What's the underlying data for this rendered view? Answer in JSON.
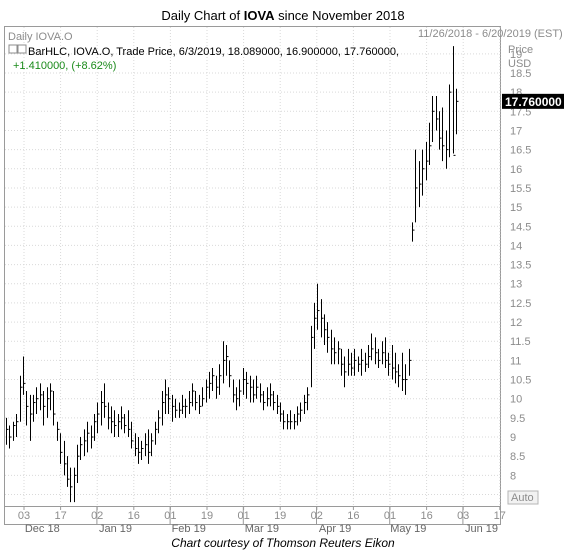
{
  "title": {
    "prefix": "Daily Chart of ",
    "ticker": "IOVA",
    "suffix": " since November 2018"
  },
  "credit": "Chart courtesy of Thomson Reuters Eikon",
  "chart_data": {
    "type": "ohlc",
    "symbol_label": "Daily IOVA.O",
    "date_range": "11/26/2018 - 6/20/2019 (EST)",
    "legend_line1": "BarHLC, IOVA.O, Trade Price, 6/3/2019, 18.089000, 16.900000, 17.760000,",
    "legend_line2": "+1.410000, (+8.62%)",
    "y_axis_title": [
      "Price",
      "USD"
    ],
    "y_ticks": [
      "19",
      "18.5",
      "18",
      "17.5",
      "17",
      "16.5",
      "16",
      "15.5",
      "15",
      "14.5",
      "14",
      "13.5",
      "13",
      "12.5",
      "12",
      "11.5",
      "11",
      "10.5",
      "10",
      "9.5",
      "9",
      "8.5",
      "8",
      "7.5"
    ],
    "ylim": [
      7.2,
      19.7
    ],
    "last_price_label": "17.760000",
    "last_price": 17.76,
    "x_ticks": [
      "03",
      "17",
      "02",
      "16",
      "01",
      "19",
      "01",
      "19",
      "02",
      "16",
      "01",
      "16",
      "03",
      "17"
    ],
    "x_months": [
      "Dec 18",
      "Jan 19",
      "Feb 19",
      "Mar 19",
      "Apr 19",
      "May 19",
      "Jun 19"
    ],
    "auto_label": "Auto",
    "colors": {
      "bars": "#000000",
      "last_price_bg": "#000000",
      "change_text": "#1a8a1a"
    },
    "bars": [
      {
        "h": 9.5,
        "l": 8.8,
        "c": 9.2
      },
      {
        "h": 9.3,
        "l": 8.7,
        "c": 9.0
      },
      {
        "h": 9.4,
        "l": 8.9,
        "c": 9.3
      },
      {
        "h": 9.6,
        "l": 9.0,
        "c": 9.4
      },
      {
        "h": 10.6,
        "l": 9.4,
        "c": 10.3
      },
      {
        "h": 11.1,
        "l": 10.1,
        "c": 10.4
      },
      {
        "h": 10.2,
        "l": 9.3,
        "c": 9.8
      },
      {
        "h": 10.1,
        "l": 8.9,
        "c": 9.6
      },
      {
        "h": 10.1,
        "l": 9.4,
        "c": 9.9
      },
      {
        "h": 10.3,
        "l": 9.6,
        "c": 10.0
      },
      {
        "h": 10.4,
        "l": 9.7,
        "c": 10.1
      },
      {
        "h": 10.2,
        "l": 9.3,
        "c": 9.8
      },
      {
        "h": 10.3,
        "l": 9.5,
        "c": 10.0
      },
      {
        "h": 10.4,
        "l": 9.7,
        "c": 10.2
      },
      {
        "h": 10.2,
        "l": 9.3,
        "c": 9.6
      },
      {
        "h": 9.4,
        "l": 8.9,
        "c": 9.2
      },
      {
        "h": 9.1,
        "l": 8.3,
        "c": 8.6
      },
      {
        "h": 8.9,
        "l": 8.0,
        "c": 8.3
      },
      {
        "h": 8.5,
        "l": 7.7,
        "c": 7.9
      },
      {
        "h": 8.2,
        "l": 7.3,
        "c": 7.7
      },
      {
        "h": 8.2,
        "l": 7.3,
        "c": 8.0
      },
      {
        "h": 8.8,
        "l": 7.8,
        "c": 8.5
      },
      {
        "h": 9.0,
        "l": 8.4,
        "c": 8.8
      },
      {
        "h": 9.2,
        "l": 8.5,
        "c": 8.9
      },
      {
        "h": 9.4,
        "l": 8.6,
        "c": 9.1
      },
      {
        "h": 9.3,
        "l": 8.7,
        "c": 9.0
      },
      {
        "h": 9.6,
        "l": 8.9,
        "c": 9.4
      },
      {
        "h": 9.9,
        "l": 9.1,
        "c": 9.6
      },
      {
        "h": 10.2,
        "l": 9.3,
        "c": 9.9
      },
      {
        "h": 10.4,
        "l": 9.5,
        "c": 9.8
      },
      {
        "h": 9.9,
        "l": 9.2,
        "c": 9.5
      },
      {
        "h": 9.8,
        "l": 9.1,
        "c": 9.4
      },
      {
        "h": 9.7,
        "l": 9.0,
        "c": 9.3
      },
      {
        "h": 9.6,
        "l": 9.0,
        "c": 9.4
      },
      {
        "h": 9.8,
        "l": 9.2,
        "c": 9.5
      },
      {
        "h": 9.6,
        "l": 9.1,
        "c": 9.3
      },
      {
        "h": 9.7,
        "l": 9.0,
        "c": 9.2
      },
      {
        "h": 9.4,
        "l": 8.7,
        "c": 8.9
      },
      {
        "h": 9.1,
        "l": 8.5,
        "c": 8.7
      },
      {
        "h": 9.0,
        "l": 8.3,
        "c": 8.6
      },
      {
        "h": 8.9,
        "l": 8.4,
        "c": 8.7
      },
      {
        "h": 9.1,
        "l": 8.5,
        "c": 8.8
      },
      {
        "h": 9.2,
        "l": 8.3,
        "c": 8.6
      },
      {
        "h": 9.1,
        "l": 8.5,
        "c": 8.9
      },
      {
        "h": 9.4,
        "l": 8.8,
        "c": 9.2
      },
      {
        "h": 9.7,
        "l": 9.1,
        "c": 9.5
      },
      {
        "h": 10.2,
        "l": 9.3,
        "c": 9.9
      },
      {
        "h": 10.5,
        "l": 9.6,
        "c": 10.1
      },
      {
        "h": 10.3,
        "l": 9.6,
        "c": 10.0
      },
      {
        "h": 10.1,
        "l": 9.4,
        "c": 9.8
      },
      {
        "h": 10.0,
        "l": 9.5,
        "c": 9.7
      },
      {
        "h": 9.9,
        "l": 9.5,
        "c": 9.7
      },
      {
        "h": 10.1,
        "l": 9.6,
        "c": 9.8
      },
      {
        "h": 10.0,
        "l": 9.5,
        "c": 9.8
      },
      {
        "h": 10.2,
        "l": 9.6,
        "c": 9.9
      },
      {
        "h": 10.4,
        "l": 9.8,
        "c": 10.2
      },
      {
        "h": 10.2,
        "l": 9.7,
        "c": 9.9
      },
      {
        "h": 10.1,
        "l": 9.6,
        "c": 9.8
      },
      {
        "h": 10.3,
        "l": 9.8,
        "c": 10.0
      },
      {
        "h": 10.5,
        "l": 9.9,
        "c": 10.3
      },
      {
        "h": 10.7,
        "l": 10.0,
        "c": 10.4
      },
      {
        "h": 10.8,
        "l": 10.2,
        "c": 10.6
      },
      {
        "h": 10.6,
        "l": 10.0,
        "c": 10.3
      },
      {
        "h": 10.9,
        "l": 10.1,
        "c": 10.6
      },
      {
        "h": 11.5,
        "l": 10.4,
        "c": 11.0
      },
      {
        "h": 11.4,
        "l": 10.6,
        "c": 11.1
      },
      {
        "h": 11.0,
        "l": 10.3,
        "c": 10.6
      },
      {
        "h": 10.5,
        "l": 9.9,
        "c": 10.1
      },
      {
        "h": 10.3,
        "l": 9.7,
        "c": 10.0
      },
      {
        "h": 10.5,
        "l": 9.8,
        "c": 10.2
      },
      {
        "h": 10.8,
        "l": 10.1,
        "c": 10.5
      },
      {
        "h": 10.7,
        "l": 10.0,
        "c": 10.4
      },
      {
        "h": 10.6,
        "l": 9.9,
        "c": 10.3
      },
      {
        "h": 10.5,
        "l": 9.9,
        "c": 10.1
      },
      {
        "h": 10.6,
        "l": 10.0,
        "c": 10.3
      },
      {
        "h": 10.4,
        "l": 9.9,
        "c": 10.1
      },
      {
        "h": 10.2,
        "l": 9.7,
        "c": 9.9
      },
      {
        "h": 10.3,
        "l": 9.8,
        "c": 10.0
      },
      {
        "h": 10.4,
        "l": 9.8,
        "c": 10.1
      },
      {
        "h": 10.2,
        "l": 9.7,
        "c": 9.9
      },
      {
        "h": 10.1,
        "l": 9.6,
        "c": 9.8
      },
      {
        "h": 9.9,
        "l": 9.4,
        "c": 9.6
      },
      {
        "h": 9.7,
        "l": 9.2,
        "c": 9.4
      },
      {
        "h": 9.6,
        "l": 9.2,
        "c": 9.4
      },
      {
        "h": 9.7,
        "l": 9.2,
        "c": 9.4
      },
      {
        "h": 9.6,
        "l": 9.2,
        "c": 9.4
      },
      {
        "h": 9.8,
        "l": 9.3,
        "c": 9.6
      },
      {
        "h": 9.9,
        "l": 9.4,
        "c": 9.7
      },
      {
        "h": 10.1,
        "l": 9.6,
        "c": 9.9
      },
      {
        "h": 10.3,
        "l": 9.7,
        "c": 10.1
      },
      {
        "h": 11.9,
        "l": 10.3,
        "c": 11.6
      },
      {
        "h": 12.5,
        "l": 11.3,
        "c": 12.1
      },
      {
        "h": 13.0,
        "l": 11.8,
        "c": 12.3
      },
      {
        "h": 12.6,
        "l": 11.6,
        "c": 12.1
      },
      {
        "h": 12.2,
        "l": 11.4,
        "c": 11.8
      },
      {
        "h": 12.0,
        "l": 11.2,
        "c": 11.6
      },
      {
        "h": 11.8,
        "l": 10.9,
        "c": 11.3
      },
      {
        "h": 11.6,
        "l": 10.9,
        "c": 11.2
      },
      {
        "h": 11.5,
        "l": 10.9,
        "c": 11.3
      },
      {
        "h": 11.3,
        "l": 10.6,
        "c": 10.9
      },
      {
        "h": 11.1,
        "l": 10.3,
        "c": 10.7
      },
      {
        "h": 11.3,
        "l": 10.6,
        "c": 10.9
      },
      {
        "h": 11.2,
        "l": 10.6,
        "c": 10.8
      },
      {
        "h": 11.3,
        "l": 10.6,
        "c": 11.0
      },
      {
        "h": 11.1,
        "l": 10.7,
        "c": 10.9
      },
      {
        "h": 11.3,
        "l": 10.6,
        "c": 11.0
      },
      {
        "h": 11.2,
        "l": 10.7,
        "c": 10.9
      },
      {
        "h": 11.4,
        "l": 10.8,
        "c": 11.1
      },
      {
        "h": 11.7,
        "l": 11.0,
        "c": 11.3
      },
      {
        "h": 11.6,
        "l": 10.9,
        "c": 11.2
      },
      {
        "h": 11.3,
        "l": 10.8,
        "c": 11.0
      },
      {
        "h": 11.5,
        "l": 10.9,
        "c": 11.2
      },
      {
        "h": 11.6,
        "l": 10.8,
        "c": 11.0
      },
      {
        "h": 11.2,
        "l": 10.6,
        "c": 10.9
      },
      {
        "h": 11.4,
        "l": 10.5,
        "c": 10.8
      },
      {
        "h": 11.2,
        "l": 10.4,
        "c": 10.7
      },
      {
        "h": 10.9,
        "l": 10.3,
        "c": 10.6
      },
      {
        "h": 11.2,
        "l": 10.2,
        "c": 10.5
      },
      {
        "h": 10.9,
        "l": 10.1,
        "c": 10.5
      },
      {
        "h": 11.3,
        "l": 10.6,
        "c": 11.0
      },
      {
        "h": 14.6,
        "l": 14.1,
        "c": 14.4
      },
      {
        "h": 16.5,
        "l": 14.6,
        "c": 15.5
      },
      {
        "h": 16.2,
        "l": 15.0,
        "c": 15.6
      },
      {
        "h": 16.5,
        "l": 15.3,
        "c": 16.0
      },
      {
        "h": 16.7,
        "l": 15.7,
        "c": 16.2
      },
      {
        "h": 17.2,
        "l": 16.1,
        "c": 16.6
      },
      {
        "h": 17.9,
        "l": 16.7,
        "c": 17.5
      },
      {
        "h": 17.9,
        "l": 17.0,
        "c": 17.3
      },
      {
        "h": 17.5,
        "l": 16.5,
        "c": 16.8
      },
      {
        "h": 17.6,
        "l": 16.2,
        "c": 16.6
      },
      {
        "h": 17.0,
        "l": 16.0,
        "c": 16.5
      },
      {
        "h": 18.2,
        "l": 16.3,
        "c": 18.0
      },
      {
        "h": 19.2,
        "l": 16.4,
        "c": 16.35
      },
      {
        "h": 18.089,
        "l": 16.9,
        "c": 17.76
      }
    ]
  }
}
